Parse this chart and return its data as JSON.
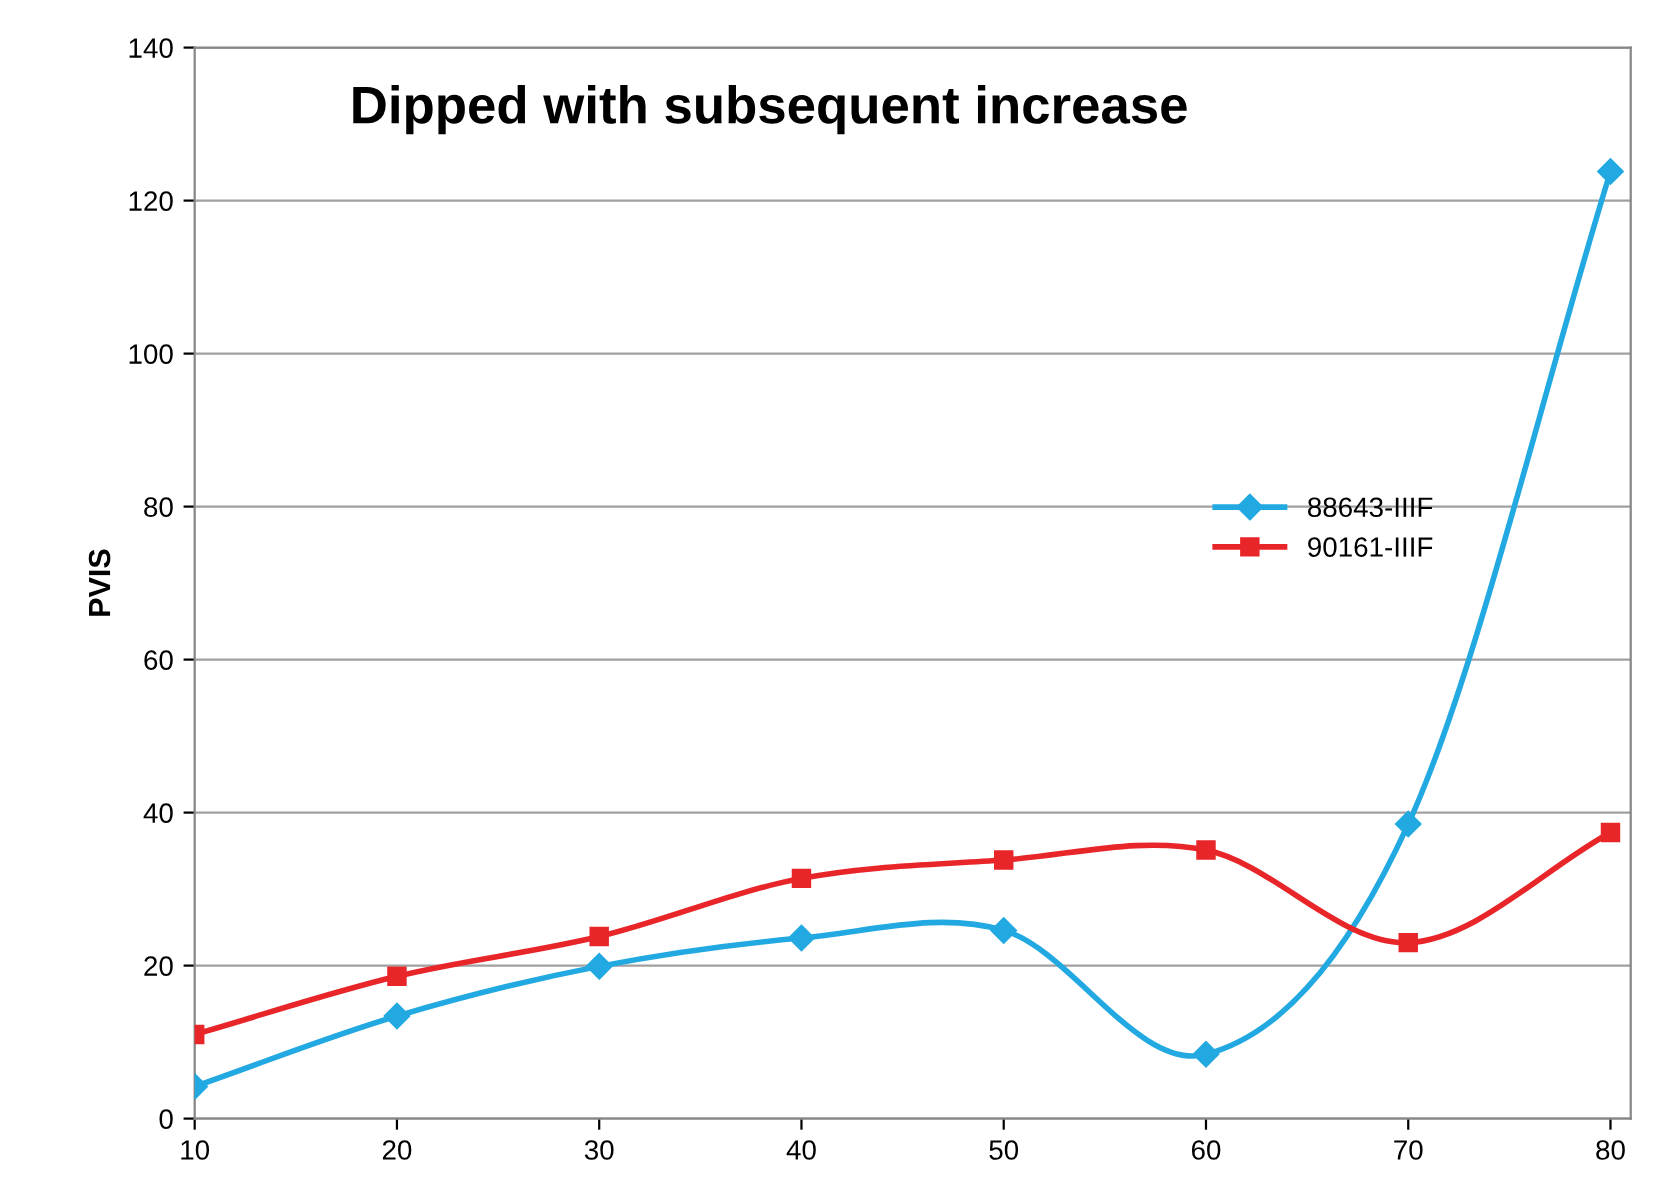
{
  "chart_data": {
    "type": "line",
    "title": "Dipped with subsequent increase",
    "ylabel": "PVIS",
    "x": [
      10,
      20,
      30,
      40,
      50,
      60,
      70,
      80
    ],
    "series": [
      {
        "name": "88643-IIIF",
        "color": "#22a9e1",
        "marker": "diamond",
        "values": [
          4.2,
          13.4,
          19.9,
          23.6,
          24.6,
          8.4,
          38.5,
          123.8
        ]
      },
      {
        "name": "90161-IIIF",
        "color": "#e8262a",
        "marker": "square",
        "values": [
          11.0,
          18.6,
          23.8,
          31.4,
          33.8,
          35.1,
          23.0,
          37.4
        ]
      }
    ],
    "xlim": [
      10,
      81
    ],
    "xticks": [
      10,
      20,
      30,
      40,
      50,
      60,
      70,
      80
    ],
    "ylim": [
      0,
      140
    ],
    "yticks": [
      0,
      20,
      40,
      60,
      80,
      100,
      120,
      140
    ],
    "grid": "y",
    "legend": "right",
    "line_style": "solid"
  }
}
